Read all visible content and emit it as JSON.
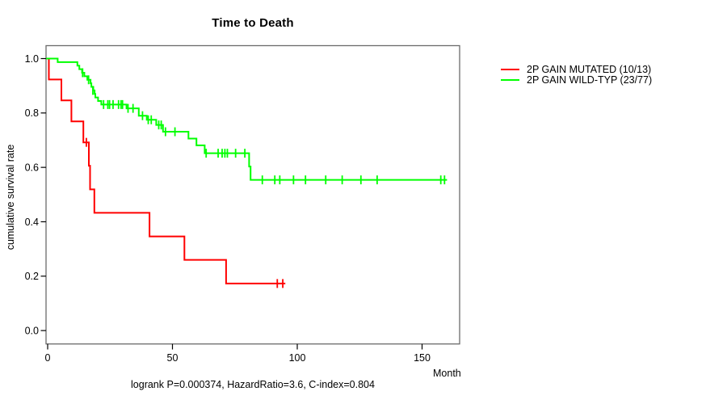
{
  "title": "Time to Death",
  "axes": {
    "x": {
      "label": "Month",
      "ticks": [
        0,
        50,
        100,
        150
      ],
      "tick_labels": [
        "0",
        "50",
        "100",
        "150"
      ]
    },
    "y": {
      "label": "cumulative survival rate",
      "ticks": [
        1.0,
        0.8,
        0.6,
        0.4,
        0.2,
        0.0
      ],
      "tick_labels": [
        "1.0",
        "0.8",
        "0.6",
        "0.4",
        "0.2",
        "0.0"
      ]
    }
  },
  "footer": "logrank P=0.000374, HazardRatio=3.6, C-index=0.804",
  "legend": {
    "items": [
      {
        "label": "2P GAIN MUTATED (10/13)",
        "color": "#ff0000"
      },
      {
        "label": "2P GAIN WILD-TYP (23/77)",
        "color": "#00ff00"
      }
    ]
  },
  "chart_data": {
    "type": "line",
    "chart_kind": "kaplan-meier-survival-step",
    "title": "Time to Death",
    "xlabel": "Month",
    "ylabel": "cumulative survival rate",
    "xlim": [
      0,
      164
    ],
    "ylim": [
      0,
      1.04
    ],
    "grid": false,
    "legend_position": "right-outside",
    "annotation": "logrank P=0.000374, HazardRatio=3.6, C-index=0.804",
    "stats": {
      "logrank_p": "0.000374",
      "hazard_ratio": "3.6",
      "c_index": "0.804"
    },
    "series": [
      {
        "name": "2P GAIN MUTATED (10/13)",
        "color": "#ff0000",
        "events": "10/13",
        "steps": [
          [
            0,
            1.0
          ],
          [
            0.5,
            0.923
          ],
          [
            5.5,
            0.846
          ],
          [
            9.5,
            0.769
          ],
          [
            14.3,
            0.692
          ],
          [
            16.5,
            0.606
          ],
          [
            17.0,
            0.519
          ],
          [
            18.7,
            0.433
          ],
          [
            40.8,
            0.346
          ],
          [
            54.8,
            0.26
          ],
          [
            71.5,
            0.173
          ]
        ],
        "end_time": 95.2,
        "censors": [
          [
            15.5,
            0.692
          ],
          [
            92.0,
            0.173
          ],
          [
            94.2,
            0.173
          ]
        ]
      },
      {
        "name": "2P GAIN WILD-TYP (23/77)",
        "color": "#00ff00",
        "events": "23/77",
        "steps": [
          [
            0,
            1.0
          ],
          [
            4.0,
            0.987
          ],
          [
            11.9,
            0.974
          ],
          [
            12.7,
            0.961
          ],
          [
            13.8,
            0.948
          ],
          [
            14.7,
            0.935
          ],
          [
            15.9,
            0.922
          ],
          [
            17.2,
            0.909
          ],
          [
            17.5,
            0.896
          ],
          [
            18.3,
            0.883
          ],
          [
            18.8,
            0.87
          ],
          [
            19.1,
            0.857
          ],
          [
            20.2,
            0.844
          ],
          [
            21.5,
            0.831
          ],
          [
            31.6,
            0.817
          ],
          [
            36.5,
            0.79
          ],
          [
            39.7,
            0.775
          ],
          [
            43.5,
            0.756
          ],
          [
            46.2,
            0.731
          ],
          [
            56.4,
            0.706
          ],
          [
            59.6,
            0.681
          ],
          [
            62.9,
            0.652
          ],
          [
            80.7,
            0.603
          ],
          [
            81.3,
            0.554
          ]
        ],
        "end_time": 160,
        "censors": [
          [
            14.0,
            0.948
          ],
          [
            16.4,
            0.922
          ],
          [
            18.1,
            0.883
          ],
          [
            22.4,
            0.831
          ],
          [
            24.1,
            0.831
          ],
          [
            24.8,
            0.831
          ],
          [
            26.2,
            0.831
          ],
          [
            28.4,
            0.831
          ],
          [
            29.4,
            0.831
          ],
          [
            30.0,
            0.831
          ],
          [
            32.2,
            0.817
          ],
          [
            34.2,
            0.817
          ],
          [
            38.0,
            0.79
          ],
          [
            40.3,
            0.775
          ],
          [
            41.5,
            0.775
          ],
          [
            44.5,
            0.756
          ],
          [
            45.5,
            0.756
          ],
          [
            47.2,
            0.731
          ],
          [
            51.0,
            0.731
          ],
          [
            63.5,
            0.652
          ],
          [
            68.3,
            0.652
          ],
          [
            69.9,
            0.652
          ],
          [
            71.0,
            0.652
          ],
          [
            72.0,
            0.652
          ],
          [
            75.3,
            0.652
          ],
          [
            79.0,
            0.652
          ],
          [
            86.0,
            0.554
          ],
          [
            91.0,
            0.554
          ],
          [
            93.0,
            0.554
          ],
          [
            98.5,
            0.554
          ],
          [
            103.3,
            0.554
          ],
          [
            111.4,
            0.554
          ],
          [
            118.0,
            0.554
          ],
          [
            125.5,
            0.554
          ],
          [
            132.0,
            0.554
          ],
          [
            157.5,
            0.554
          ],
          [
            159.0,
            0.554
          ]
        ]
      }
    ]
  }
}
